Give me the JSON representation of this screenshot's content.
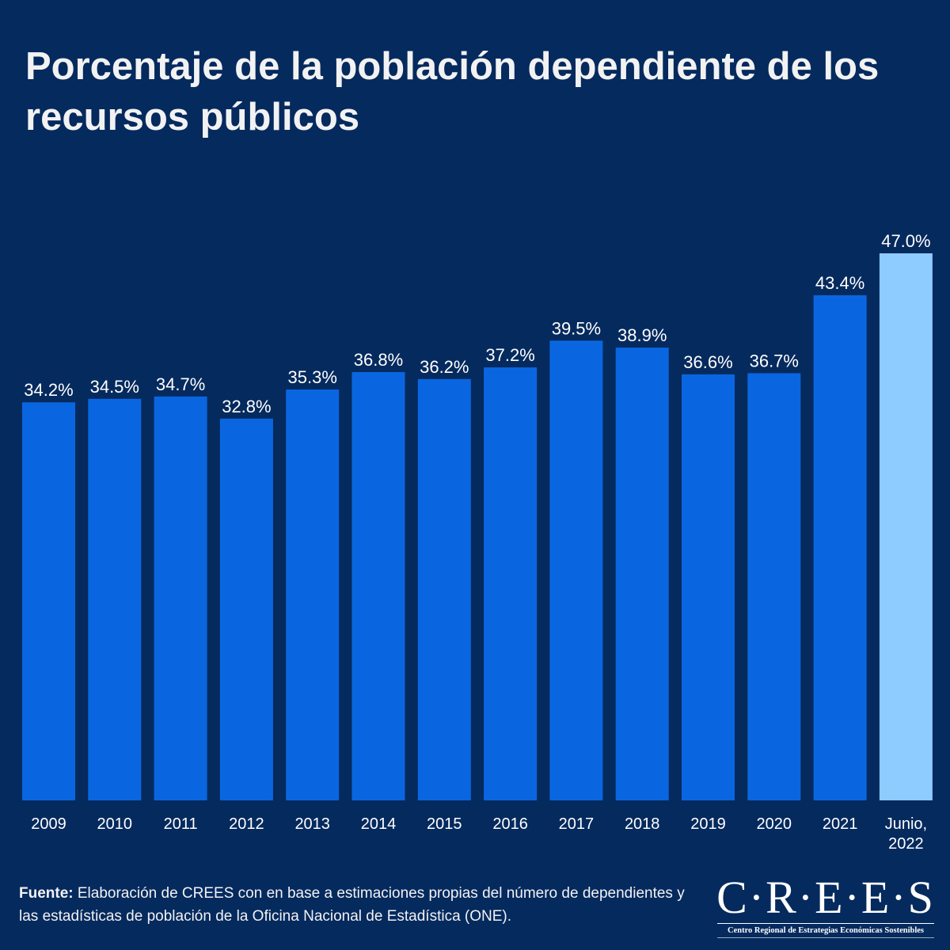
{
  "chart_data": {
    "type": "bar",
    "title": "Porcentaje de la población dependiente de los recursos públicos",
    "categories": [
      "2009",
      "2010",
      "2011",
      "2012",
      "2013",
      "2014",
      "2015",
      "2016",
      "2017",
      "2018",
      "2019",
      "2020",
      "2021",
      "Junio, 2022"
    ],
    "values": [
      34.2,
      34.5,
      34.7,
      32.8,
      35.3,
      36.8,
      36.2,
      37.2,
      39.5,
      38.9,
      36.6,
      36.7,
      43.4,
      47.0
    ],
    "data_labels": [
      "34.2%",
      "34.5%",
      "34.7%",
      "32.8%",
      "35.3%",
      "36.8%",
      "36.2%",
      "37.2%",
      "39.5%",
      "38.9%",
      "36.6%",
      "36.7%",
      "43.4%",
      "47.0%"
    ],
    "xlabel": "",
    "ylabel": "",
    "ylim": [
      0,
      47
    ],
    "grid": false,
    "colors": {
      "bar": "#0a66e0",
      "highlight_bar": "#8ecbff",
      "background": "#052a5e"
    }
  },
  "source": {
    "label": "Fuente:",
    "text": " Elaboración de CREES con en base a estimaciones propias del número de dependientes y las estadísticas de población de la Oficina Nacional de Estadística (ONE)."
  },
  "logo": {
    "name": "C·R·E·E·S",
    "subtitle": "Centro Regional de Estrategias Económicas Sostenibles"
  }
}
